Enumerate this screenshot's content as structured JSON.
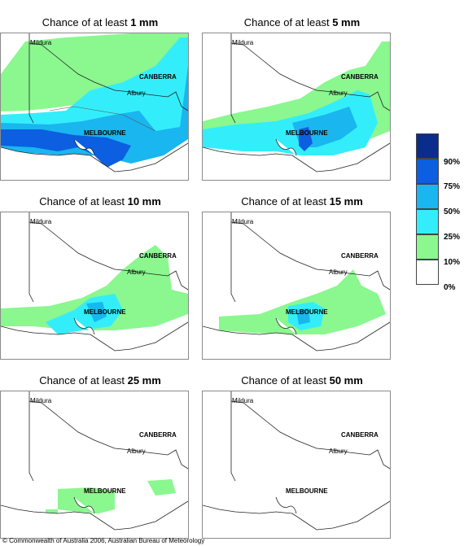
{
  "title_prefix": "Chance of at least",
  "panels": [
    {
      "amount": "1 mm"
    },
    {
      "amount": "5 mm"
    },
    {
      "amount": "10 mm"
    },
    {
      "amount": "15 mm"
    },
    {
      "amount": "25 mm"
    },
    {
      "amount": "50 mm"
    }
  ],
  "places": {
    "mildura": "Mildura",
    "canberra": "CANBERRA",
    "albury": "Albury",
    "melbourne": "MELBOURNE"
  },
  "legend": {
    "labels": [
      "90%",
      "75%",
      "50%",
      "25%",
      "10%",
      "0%"
    ],
    "colors": [
      "#0a2d8c",
      "#0b5fe0",
      "#19b6f0",
      "#33eefa",
      "#8af78f",
      "#ffffff"
    ]
  },
  "copyright": "© Commonwealth of Australia 2006, Australian Bureau of Meteorology"
}
